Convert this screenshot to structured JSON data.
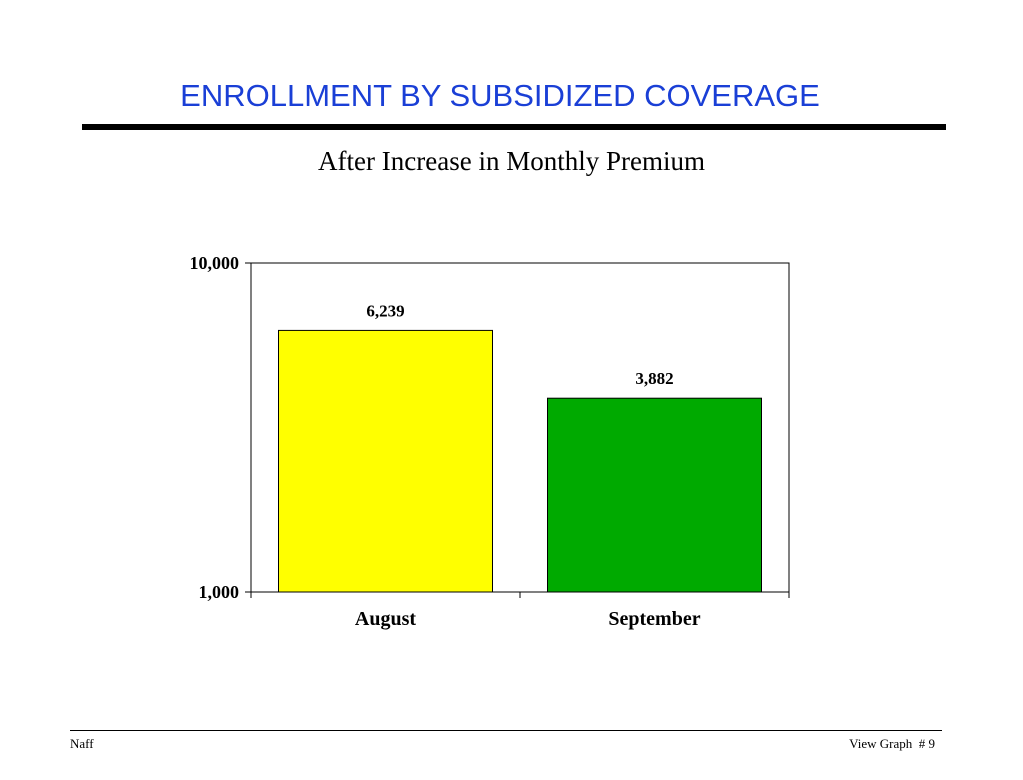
{
  "slide": {
    "title": "ENROLLMENT BY SUBSIDIZED COVERAGE",
    "subtitle": "After Increase in Monthly Premium"
  },
  "footer": {
    "author": "Naff",
    "page_label": "View Graph  # 9"
  },
  "colors": {
    "title": "#1a3fd6",
    "bar_august": "#ffff00",
    "bar_september": "#00aa00"
  },
  "chart_data": {
    "type": "bar",
    "categories": [
      "August",
      "September"
    ],
    "values": [
      6239,
      3882
    ],
    "value_labels": [
      "6,239",
      "3,882"
    ],
    "bar_colors": [
      "#ffff00",
      "#00aa00"
    ],
    "yscale": "log",
    "ylim": [
      1000,
      10000
    ],
    "yticks": [
      1000,
      10000
    ],
    "ytick_labels": [
      "1,000",
      "10,000"
    ],
    "grid": false,
    "legend": "none"
  }
}
